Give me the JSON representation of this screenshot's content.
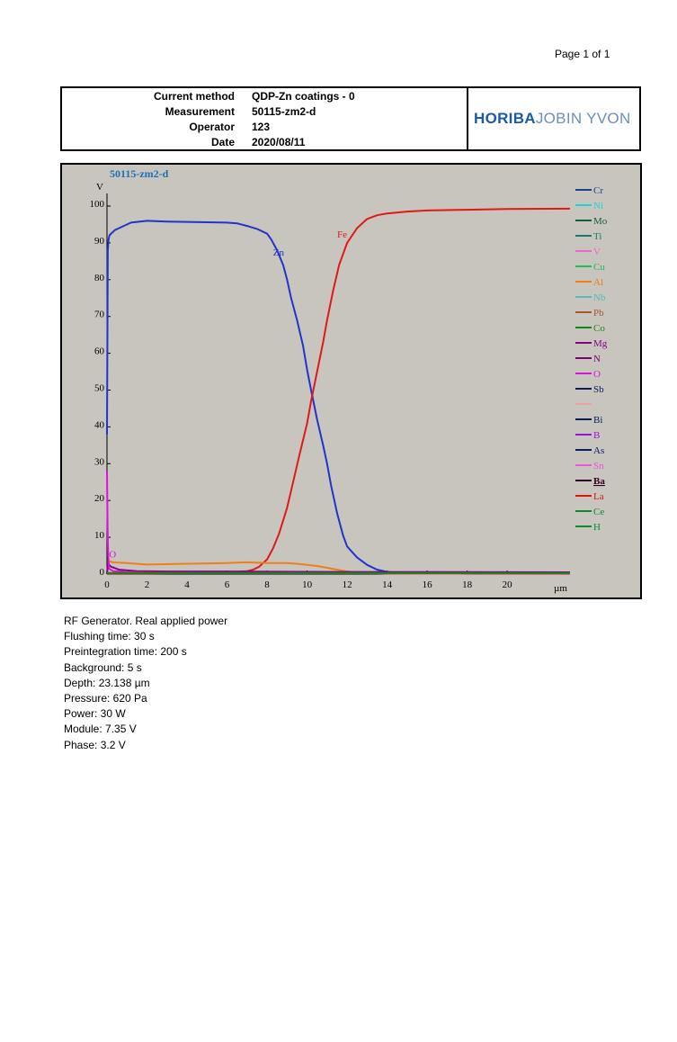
{
  "page": {
    "page_label": "Page 1 of 1"
  },
  "header": {
    "rows": [
      {
        "key": "Current method",
        "value": "QDP-Zn coatings - 0"
      },
      {
        "key": "Measurement",
        "value": "50115-zm2-d"
      },
      {
        "key": "Operator",
        "value": "123"
      },
      {
        "key": "Date",
        "value": "2020/08/11"
      }
    ],
    "logo_bold": "HORIBA",
    "logo_thin": "JOBIN YVON"
  },
  "chart_data": {
    "type": "line",
    "title": "50115-zm2-d",
    "ylabel": "V",
    "xlabel": "µm",
    "xlim": [
      0,
      23.138
    ],
    "ylim": [
      0,
      100
    ],
    "xticks": [
      0,
      2,
      4,
      6,
      8,
      10,
      12,
      14,
      16,
      18,
      20
    ],
    "yticks": [
      0,
      10,
      20,
      30,
      40,
      50,
      60,
      70,
      80,
      90,
      100
    ],
    "legend_position": "right",
    "legend": [
      {
        "name": "Cr",
        "color": "#1f3f8f"
      },
      {
        "name": "Ni",
        "color": "#22d3d3"
      },
      {
        "name": "Mo",
        "color": "#1a5a3a"
      },
      {
        "name": "Ti",
        "color": "#1a7a6a"
      },
      {
        "name": "V",
        "color": "#ee66cc"
      },
      {
        "name": "Cu",
        "color": "#22bb55"
      },
      {
        "name": "Al",
        "color": "#f07d1a"
      },
      {
        "name": "Nb",
        "color": "#55bbbb"
      },
      {
        "name": "Pb",
        "color": "#aa5533"
      },
      {
        "name": "Co",
        "color": "#118811"
      },
      {
        "name": "Mg",
        "color": "#880088"
      },
      {
        "name": "N",
        "color": "#770077"
      },
      {
        "name": "O",
        "color": "#dd11dd"
      },
      {
        "name": "Sb",
        "color": "#0a1a66"
      },
      {
        "name": "",
        "color": "#f0a0a0"
      },
      {
        "name": "Bi",
        "color": "#0a1a66"
      },
      {
        "name": "B",
        "color": "#9911dd"
      },
      {
        "name": "As",
        "color": "#0a1a66"
      },
      {
        "name": "Sn",
        "color": "#ee55dd"
      },
      {
        "name": "Ba",
        "color": "#330022"
      },
      {
        "name": "La",
        "color": "#dd1111"
      },
      {
        "name": "Ce",
        "color": "#118833"
      },
      {
        "name": "H",
        "color": "#118833"
      }
    ],
    "series": [
      {
        "name": "Zn",
        "color": "#2233cc",
        "x": [
          0,
          0.04,
          0.08,
          0.12,
          0.2,
          0.4,
          0.8,
          1.2,
          2,
          3,
          4,
          5,
          6,
          6.5,
          7,
          7.5,
          8,
          8.2,
          8.5,
          8.8,
          9,
          9.2,
          9.5,
          9.8,
          10,
          10.2,
          10.5,
          10.8,
          11,
          11.2,
          11.5,
          11.8,
          12,
          12.5,
          13,
          13.5,
          14,
          14.5,
          15,
          16,
          18,
          20,
          23.138
        ],
        "y": [
          38,
          88,
          91,
          92,
          92.5,
          93.5,
          94.5,
          95.5,
          96,
          95.8,
          95.7,
          95.6,
          95.5,
          95.3,
          94.6,
          93.8,
          92.5,
          91,
          88,
          84,
          80,
          75,
          69,
          62,
          55.5,
          50,
          42,
          35,
          30,
          24,
          16.5,
          10.5,
          7.5,
          4.5,
          2.5,
          1.2,
          0.6,
          0.3,
          0.2,
          0.15,
          0.1,
          0.1,
          0.1
        ]
      },
      {
        "name": "Fe",
        "color": "#e01818",
        "x": [
          0,
          2,
          4,
          6,
          7,
          7.3,
          7.6,
          8,
          8.3,
          8.6,
          9,
          9.3,
          9.6,
          10,
          10.2,
          10.5,
          10.8,
          11,
          11.3,
          11.6,
          12,
          12.5,
          13,
          13.5,
          14,
          15,
          16,
          18,
          20,
          23.138
        ],
        "y": [
          0.2,
          0.2,
          0.3,
          0.5,
          0.8,
          1.2,
          2,
          4,
          7,
          11,
          18,
          25,
          32,
          41,
          47,
          55,
          63,
          69,
          77,
          84,
          90,
          94,
          96.5,
          97.5,
          98,
          98.5,
          98.8,
          99,
          99.2,
          99.3
        ]
      },
      {
        "name": "Al",
        "color": "#f07d1a",
        "x": [
          0,
          0.1,
          0.3,
          1,
          2,
          4,
          6,
          7,
          8,
          9,
          9.5,
          10,
          10.5,
          11,
          11.5,
          12,
          13,
          14,
          23.138
        ],
        "y": [
          0.5,
          3.5,
          3.2,
          3,
          2.6,
          2.8,
          3,
          3.2,
          3,
          3,
          2.8,
          2.5,
          2.2,
          1.7,
          1.2,
          0.7,
          0.3,
          0.15,
          0.1
        ]
      },
      {
        "name": "Mg",
        "color": "#880088",
        "x": [
          0,
          0.05,
          0.2,
          0.6,
          1.5,
          3,
          6,
          10,
          23.138
        ],
        "y": [
          0,
          2.8,
          2,
          1.2,
          0.8,
          0.7,
          0.7,
          0.6,
          0.5
        ]
      },
      {
        "name": "O",
        "color": "#dd11dd",
        "x": [
          0,
          0.03,
          0.06,
          0.1,
          0.3,
          1,
          3,
          23.138
        ],
        "y": [
          28,
          12,
          5,
          1.5,
          0.8,
          0.5,
          0.3,
          0.2
        ]
      },
      {
        "name": "Co",
        "color": "#118811",
        "x": [
          0,
          23.138
        ],
        "y": [
          0.3,
          0.3
        ]
      }
    ],
    "annotations": [
      {
        "text": "Zn",
        "x": 8.3,
        "y": 86.5,
        "color": "#2233cc"
      },
      {
        "text": "Fe",
        "x": 11.5,
        "y": 91.5,
        "color": "#e01818"
      },
      {
        "text": "O",
        "x": 0.1,
        "y": 4.5,
        "color": "#dd11dd"
      }
    ]
  },
  "parameters": [
    "RF Generator. Real applied power",
    "Flushing time: 30 s",
    "Preintegration time: 200 s",
    "Background: 5 s",
    "Depth: 23.138 µm",
    "Pressure: 620 Pa",
    "Power: 30 W",
    "Module: 7.35 V",
    "Phase: 3.2 V"
  ]
}
